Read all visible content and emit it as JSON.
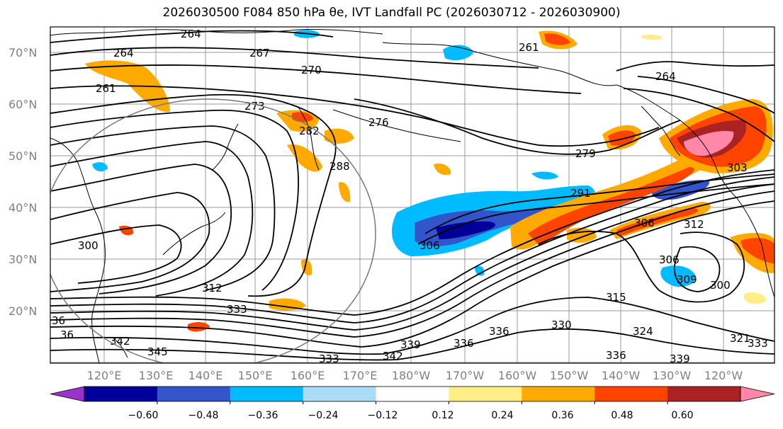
{
  "title": "2026030500 F084 850 hPa θe, IVT Landfall PC (2026030712 - 2026030900)",
  "map": {
    "lat_labels": [
      "70°N",
      "60°N",
      "50°N",
      "40°N",
      "30°N",
      "20°N"
    ],
    "lon_labels": [
      "120°E",
      "130°E",
      "140°E",
      "150°E",
      "160°E",
      "170°E",
      "180°W",
      "170°W",
      "160°W",
      "150°W",
      "140°W",
      "130°W",
      "120°W"
    ],
    "contour_labels": [
      "264",
      "267",
      "270",
      "264",
      "261",
      "273",
      "276",
      "282",
      "288",
      "279",
      "261",
      "264",
      "303",
      "291",
      "306",
      "312",
      "300",
      "306",
      "309",
      "300",
      "312",
      "333",
      "315",
      "330",
      "324",
      "321",
      "336",
      "333",
      "336",
      "339",
      "342",
      "345",
      "339",
      "336",
      "342",
      "306",
      "333",
      "36",
      "36"
    ]
  },
  "colorbar": {
    "colors": [
      "#9933cc",
      "#000099",
      "#3355cc",
      "#00bbff",
      "#aaddf5",
      "#ffffff",
      "#ffee88",
      "#ffaa00",
      "#ff4400",
      "#aa2222",
      "#ff88aa"
    ],
    "ticks": [
      "−0.60",
      "−0.48",
      "−0.36",
      "−0.24",
      "−0.12",
      "0.12",
      "0.24",
      "0.36",
      "0.48",
      "0.60"
    ]
  }
}
